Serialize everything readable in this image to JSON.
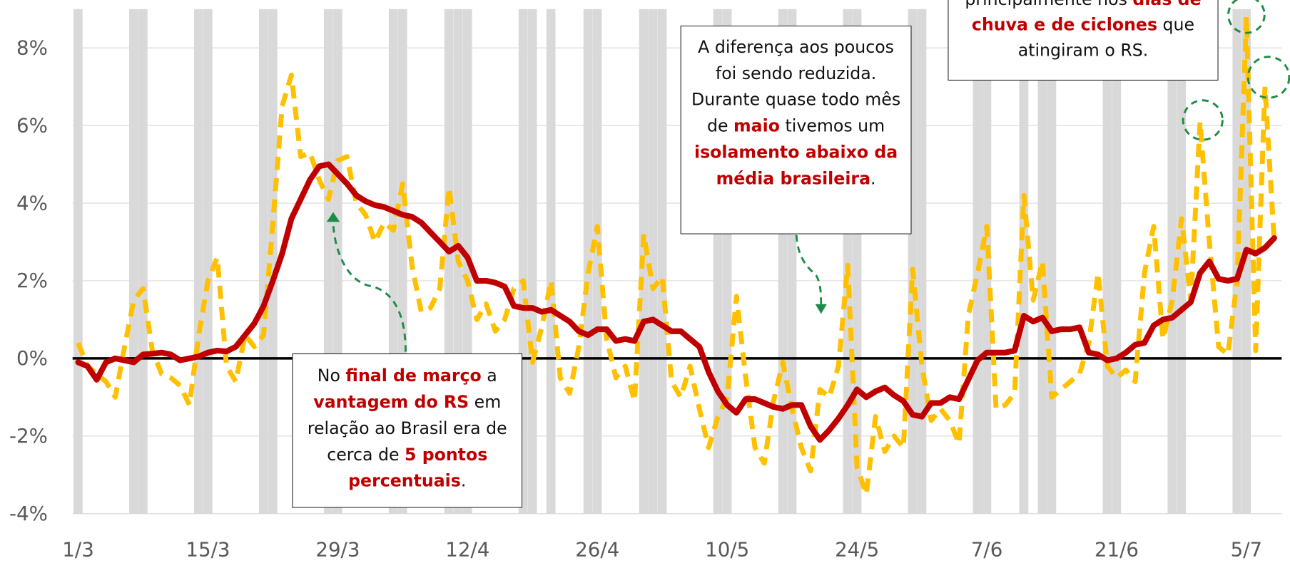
{
  "chart_data": {
    "type": "line",
    "categories": [
      "1/3",
      null,
      null,
      null,
      null,
      null,
      null,
      null,
      null,
      null,
      null,
      null,
      null,
      null,
      "15/3",
      null,
      null,
      null,
      null,
      null,
      null,
      null,
      null,
      null,
      null,
      null,
      null,
      null,
      "29/3",
      null,
      null,
      null,
      null,
      null,
      null,
      null,
      null,
      null,
      null,
      null,
      null,
      null,
      "12/4",
      null,
      null,
      null,
      null,
      null,
      null,
      null,
      null,
      null,
      null,
      null,
      null,
      null,
      "26/4",
      null,
      null,
      null,
      null,
      null,
      null,
      null,
      null,
      null,
      null,
      null,
      null,
      null,
      "10/5",
      null,
      null,
      null,
      null,
      null,
      null,
      null,
      null,
      null,
      null,
      null,
      null,
      null,
      "24/5",
      null,
      null,
      null,
      null,
      null,
      null,
      null,
      null,
      null,
      null,
      null,
      null,
      null,
      "7/6",
      null,
      null,
      null,
      null,
      null,
      null,
      null,
      null,
      null,
      null,
      null,
      null,
      null,
      "21/6",
      null,
      null,
      null,
      null,
      null,
      null,
      null,
      null,
      null,
      null,
      null,
      null,
      null,
      "5/7",
      null,
      null,
      null
    ],
    "series": [
      {
        "color": "#FFC000",
        "style": "dashed",
        "values": [
          0.4,
          -0.2,
          -0.4,
          -0.6,
          -1.0,
          0.3,
          1.5,
          1.8,
          0.2,
          -0.4,
          -0.5,
          -0.7,
          -1.2,
          0.6,
          2.0,
          2.6,
          -0.2,
          -0.6,
          0.6,
          0.3,
          0.6,
          3.5,
          6.5,
          7.3,
          5.2,
          5.3,
          4.6,
          4.1,
          5.1,
          5.2,
          4.0,
          3.7,
          3.0,
          3.5,
          3.3,
          4.5,
          2.4,
          1.2,
          1.3,
          1.8,
          4.4,
          2.5,
          2.0,
          1.0,
          1.4,
          0.7,
          1.0,
          1.8,
          2.0,
          -0.1,
          0.8,
          2.0,
          -0.5,
          -0.9,
          0.3,
          2.2,
          3.4,
          0.5,
          -0.5,
          -0.2,
          -1.1,
          3.2,
          1.8,
          2.1,
          -0.6,
          -1.0,
          -0.2,
          -1.3,
          -2.3,
          -1.5,
          -1.0,
          1.6,
          -0.5,
          -2.3,
          -2.7,
          -1.1,
          -0.1,
          -1.3,
          -2.3,
          -2.9,
          -0.8,
          -1.0,
          -0.2,
          2.4,
          -2.8,
          -3.5,
          -1.5,
          -2.4,
          -2.0,
          -2.3,
          2.3,
          -0.2,
          -1.6,
          -1.3,
          -1.6,
          -2.2,
          1.1,
          2.2,
          3.4,
          -1.3,
          -1.2,
          -0.9,
          4.2,
          1.5,
          2.5,
          -1.0,
          -0.8,
          -0.6,
          -0.4,
          0.4,
          2.2,
          -0.2,
          -0.5,
          -0.3,
          -0.6,
          2.2,
          3.4,
          0.5,
          1.5,
          3.6,
          1.5,
          6.1,
          3.0,
          0.3,
          0.1,
          2.0,
          8.8,
          0.2,
          7.0,
          3.0
        ]
      },
      {
        "color": "#C00000",
        "style": "solid",
        "values": [
          -0.1,
          -0.2,
          -0.55,
          -0.1,
          0.0,
          -0.05,
          -0.1,
          0.1,
          0.12,
          0.15,
          0.1,
          -0.05,
          0.0,
          0.05,
          0.15,
          0.2,
          0.18,
          0.3,
          0.6,
          0.9,
          1.35,
          2.0,
          2.7,
          3.6,
          4.1,
          4.6,
          4.95,
          5.0,
          4.75,
          4.5,
          4.2,
          4.05,
          3.95,
          3.9,
          3.8,
          3.7,
          3.65,
          3.5,
          3.25,
          3.0,
          2.75,
          2.9,
          2.6,
          2.0,
          2.0,
          1.95,
          1.85,
          1.35,
          1.3,
          1.3,
          1.2,
          1.25,
          1.1,
          0.95,
          0.7,
          0.6,
          0.75,
          0.75,
          0.45,
          0.5,
          0.45,
          0.95,
          1.0,
          0.85,
          0.7,
          0.7,
          0.5,
          0.3,
          -0.35,
          -0.85,
          -1.2,
          -1.4,
          -1.05,
          -1.05,
          -1.15,
          -1.25,
          -1.3,
          -1.2,
          -1.2,
          -1.75,
          -2.1,
          -1.85,
          -1.55,
          -1.2,
          -0.8,
          -1.0,
          -0.85,
          -0.75,
          -0.95,
          -1.1,
          -1.45,
          -1.5,
          -1.15,
          -1.15,
          -1.0,
          -1.05,
          -0.55,
          -0.05,
          0.15,
          0.15,
          0.15,
          0.2,
          1.1,
          0.95,
          1.05,
          0.7,
          0.75,
          0.75,
          0.8,
          0.15,
          0.1,
          -0.05,
          0.0,
          0.15,
          0.35,
          0.4,
          0.85,
          1.0,
          1.05,
          1.25,
          1.45,
          2.2,
          2.5,
          2.05,
          2.0,
          2.05,
          2.8,
          2.7,
          2.85,
          3.1
        ]
      }
    ],
    "shaded": [
      0,
      6,
      7,
      13,
      14,
      20,
      21,
      27,
      28,
      34,
      35,
      40,
      41,
      42,
      48,
      49,
      51,
      55,
      56,
      61,
      62,
      63,
      69,
      70,
      76,
      77,
      83,
      84,
      90,
      91,
      97,
      98,
      102,
      104,
      105,
      111,
      112,
      118,
      119,
      125,
      126
    ],
    "shade_color": "#D9D9D9",
    "ylim": [
      -4,
      9
    ],
    "yticks": [
      {
        "value": -4,
        "label": "-4%"
      },
      {
        "value": -2,
        "label": "-2%"
      },
      {
        "value": 0,
        "label": "0%"
      },
      {
        "value": 2,
        "label": "2%"
      },
      {
        "value": 4,
        "label": "4%"
      },
      {
        "value": 6,
        "label": "6%"
      },
      {
        "value": 8,
        "label": "8%"
      }
    ],
    "grid": true,
    "emphasis_color": "#C00000",
    "annotations": [
      {
        "segments": [
          {
            "text": "No "
          },
          {
            "text": "final de março",
            "bold": true
          },
          {
            "text": " a "
          },
          {
            "text": "vantagem do RS",
            "bold": true
          },
          {
            "text": " em relação ao Brasil era de cerca de "
          },
          {
            "text": "5 pontos percentuais",
            "bold": true
          },
          {
            "text": "."
          }
        ]
      },
      {
        "segments": [
          {
            "text": "A diferença aos poucos foi sendo reduzida. Durante quase todo mês de "
          },
          {
            "text": "maio",
            "bold": true
          },
          {
            "text": " tivemos um "
          },
          {
            "text": "isolamento abaixo da média brasileira",
            "bold": true
          },
          {
            "text": "."
          }
        ]
      },
      {
        "segments": [
          {
            "text": "principalmente nos "
          },
          {
            "text": "dias de chuva e de ciclones",
            "bold": true
          },
          {
            "text": " que atingiram o RS."
          }
        ]
      }
    ]
  }
}
